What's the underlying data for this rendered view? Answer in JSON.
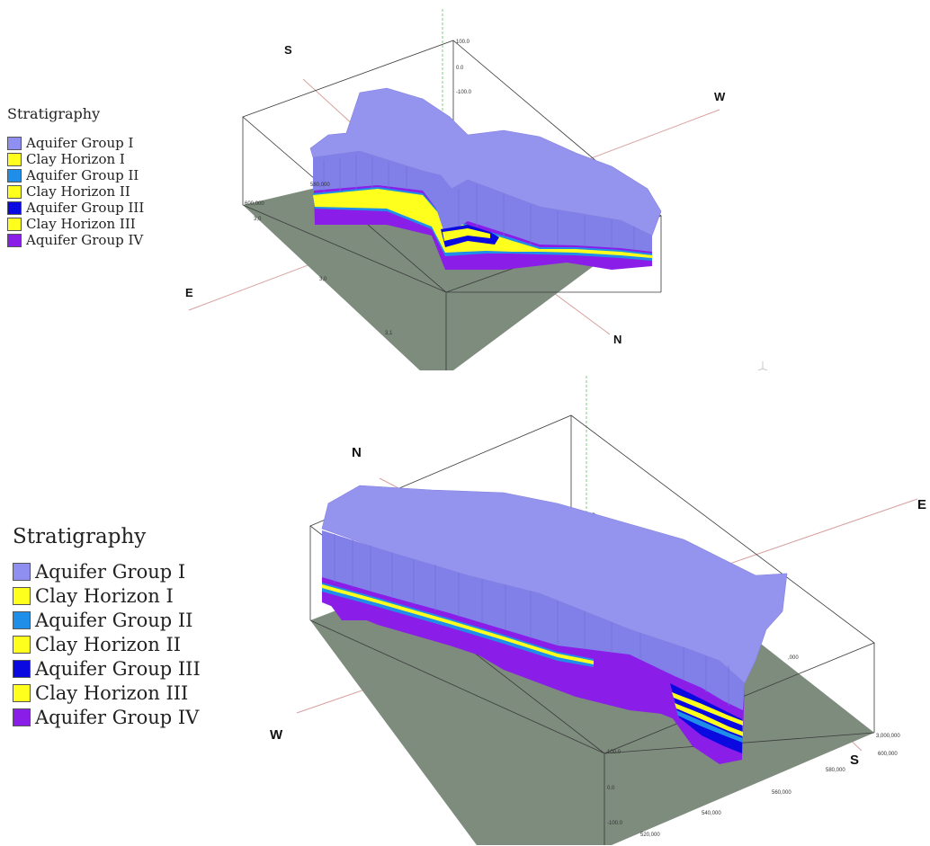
{
  "top_view": {
    "legend_title": "Stratigraphy",
    "directions": {
      "s": "S",
      "w": "W",
      "e": "E",
      "n": "N"
    },
    "z_ticks": [
      "100.0",
      "0.0",
      "-100.0"
    ],
    "side_labels": [
      "580,000",
      "600,000",
      "3,0",
      "3,0",
      "3,1"
    ]
  },
  "bottom_view": {
    "legend_title": "Stratigraphy",
    "directions": {
      "n": "N",
      "e": "E",
      "w": "W",
      "s": "S"
    },
    "z_ticks": [
      "100.0",
      "0.0",
      "-100.0"
    ],
    "easting_ticks": [
      "520,000",
      "540,000",
      "560,000",
      "580,000",
      "600,000"
    ],
    "northing_ticks": [
      "3,000,000",
      ",000"
    ]
  },
  "layers": [
    {
      "label": "Aquifer Group I",
      "color": "#8f8ff2"
    },
    {
      "label": "Clay Horizon I",
      "color": "#ffff1e"
    },
    {
      "label": "Aquifer Group II",
      "color": "#1e8ee8"
    },
    {
      "label": "Clay Horizon II",
      "color": "#ffff1e"
    },
    {
      "label": "Aquifer Group III",
      "color": "#0a0ae0"
    },
    {
      "label": "Clay Horizon III",
      "color": "#ffff1e"
    },
    {
      "label": "Aquifer Group IV",
      "color": "#8a1ee8"
    }
  ],
  "colors": {
    "ground": "#7d8c7d",
    "block_side": "#8080e8",
    "block_top": "#9494ee",
    "axis_guide": "#d8a0a0"
  }
}
